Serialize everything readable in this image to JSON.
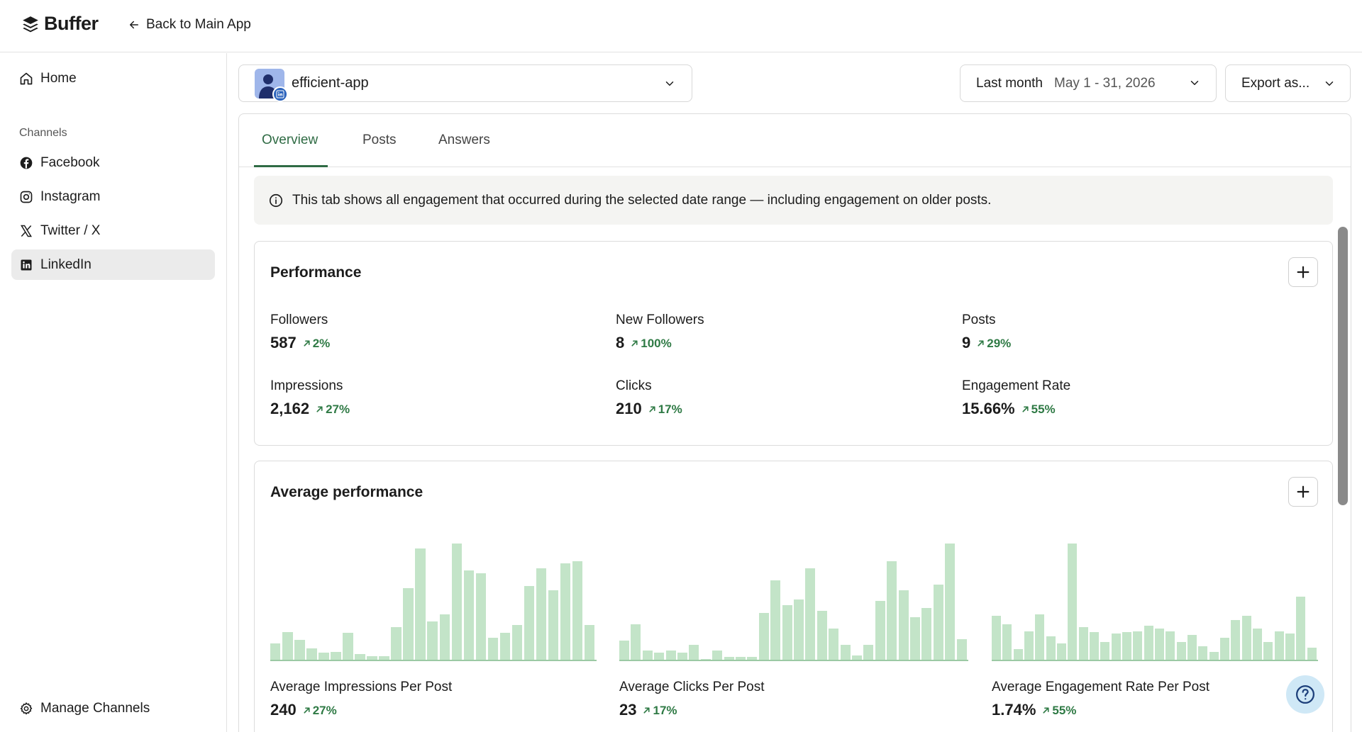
{
  "topbar": {
    "logo_text": "Buffer",
    "back_label": "Back to Main App"
  },
  "sidebar": {
    "home_label": "Home",
    "section_title": "Channels",
    "channels": [
      {
        "label": "Facebook",
        "icon": "facebook-icon"
      },
      {
        "label": "Instagram",
        "icon": "instagram-icon"
      },
      {
        "label": "Twitter / X",
        "icon": "twitter-x-icon"
      },
      {
        "label": "LinkedIn",
        "icon": "linkedin-icon",
        "active": true
      }
    ],
    "manage_label": "Manage Channels"
  },
  "header": {
    "channel_name": "efficient-app",
    "date_label": "Last month",
    "date_range": "May 1 - 31, 2026",
    "export_label": "Export as..."
  },
  "tabs": [
    {
      "label": "Overview",
      "active": true
    },
    {
      "label": "Posts",
      "active": false
    },
    {
      "label": "Answers",
      "active": false
    }
  ],
  "info_banner": "This tab shows all engagement that occurred during the selected date range — including engagement on older posts.",
  "performance": {
    "title": "Performance",
    "metrics": [
      {
        "label": "Followers",
        "value": "587",
        "change": "2%"
      },
      {
        "label": "New Followers",
        "value": "8",
        "change": "100%"
      },
      {
        "label": "Posts",
        "value": "9",
        "change": "29%"
      },
      {
        "label": "Impressions",
        "value": "2,162",
        "change": "27%"
      },
      {
        "label": "Clicks",
        "value": "210",
        "change": "17%"
      },
      {
        "label": "Engagement Rate",
        "value": "15.66%",
        "change": "55%"
      }
    ]
  },
  "avg_performance": {
    "title": "Average performance",
    "charts": [
      {
        "label": "Average Impressions Per Post",
        "value": "240",
        "change": "27%",
        "bars": [
          15,
          25,
          18,
          11,
          7,
          8,
          24,
          6,
          4,
          4,
          29,
          62,
          96,
          34,
          40,
          100,
          77,
          75,
          20,
          24,
          31,
          64,
          79,
          60,
          83,
          85,
          31
        ]
      },
      {
        "label": "Average Clicks Per Post",
        "value": "23",
        "change": "17%",
        "bars": [
          14,
          25,
          7,
          6,
          7,
          6,
          11,
          1,
          7,
          3,
          3,
          3,
          33,
          55,
          38,
          42,
          63,
          34,
          22,
          11,
          4,
          11,
          41,
          68,
          48,
          30,
          36,
          52,
          80,
          15
        ]
      },
      {
        "label": "Average Engagement Rate Per Post",
        "value": "1.74%",
        "change": "55%",
        "bars": [
          33,
          27,
          9,
          22,
          34,
          18,
          13,
          86,
          25,
          21,
          14,
          20,
          21,
          22,
          26,
          24,
          22,
          14,
          19,
          11,
          7,
          17,
          30,
          33,
          24,
          14,
          22,
          20,
          47,
          10
        ]
      }
    ]
  },
  "colors": {
    "accent_green": "#2f6b44",
    "change_green": "#2f7a45",
    "bar_green": "#c3e4c8"
  }
}
